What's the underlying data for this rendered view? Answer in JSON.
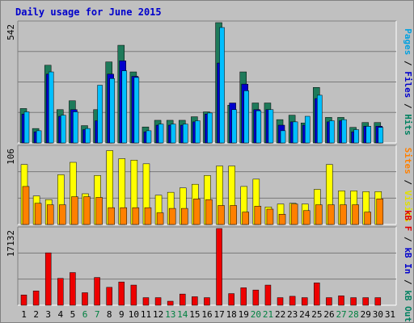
{
  "chart_data": {
    "type": "bar",
    "title": "Daily usage for June 2015",
    "categories": [
      "1",
      "2",
      "3",
      "4",
      "5",
      "6",
      "7",
      "8",
      "9",
      "10",
      "11",
      "12",
      "13",
      "14",
      "15",
      "16",
      "17",
      "18",
      "19",
      "20",
      "21",
      "22",
      "23",
      "24",
      "25",
      "26",
      "27",
      "28",
      "29",
      "30",
      "31"
    ],
    "weekend_days": [
      6,
      7,
      13,
      14,
      20,
      21,
      27,
      28
    ],
    "panels": [
      {
        "name": "hits_files_pages",
        "max_label": "542",
        "ylim": [
          0,
          542
        ],
        "side_labels": [
          {
            "text": "Pages",
            "color": "#00a0e0"
          },
          {
            "text": " / ",
            "color": "#000000"
          },
          {
            "text": "Files",
            "color": "#0000cc"
          },
          {
            "text": " / ",
            "color": "#000000"
          },
          {
            "text": "Hits",
            "color": "#008060"
          }
        ],
        "series": [
          {
            "name": "Hits",
            "color": "#1e7a5a",
            "values": [
              155,
              65,
              350,
              150,
              190,
              78,
              150,
              365,
              440,
              320,
              72,
              102,
              102,
              102,
              118,
              140,
              542,
              170,
              320,
              180,
              180,
              105,
              125,
              90,
              250,
              115,
              115,
              70,
              92,
              92,
              0
            ]
          },
          {
            "name": "Files",
            "color": "#0000cc",
            "values": [
              130,
              50,
              310,
              120,
              150,
              60,
              100,
              310,
              370,
              300,
              50,
              80,
              80,
              80,
              95,
              130,
              360,
              180,
              265,
              150,
              150,
              80,
              95,
              80,
              200,
              95,
              100,
              50,
              75,
              75,
              0
            ]
          },
          {
            "name": "Pages",
            "color": "#00bfff",
            "values": [
              140,
              55,
              320,
              125,
              140,
              65,
              260,
              290,
              325,
              295,
              55,
              85,
              85,
              85,
              100,
              135,
              520,
              150,
              235,
              145,
              150,
              55,
              95,
              120,
              215,
              100,
              105,
              60,
              75,
              70,
              0
            ]
          }
        ]
      },
      {
        "name": "visits_sites",
        "max_label": "106",
        "ylim": [
          0,
          106
        ],
        "side_labels": [
          {
            "text": "Sites",
            "color": "#ff8000"
          },
          {
            "text": " / ",
            "color": "#000000"
          },
          {
            "text": "Visits",
            "color": "#e0e000"
          }
        ],
        "series": [
          {
            "name": "Visits",
            "color": "#ffff00",
            "values": [
              82,
              39,
              34,
              68,
              85,
              42,
              67,
              101,
              90,
              88,
              83,
              40,
              44,
              50,
              55,
              67,
              80,
              80,
              52,
              62,
              24,
              28,
              29,
              28,
              48,
              82,
              46,
              46,
              45,
              45,
              0
            ]
          },
          {
            "name": "Sites",
            "color": "#ff8000",
            "values": [
              52,
              29,
              27,
              27,
              38,
              38,
              37,
              23,
              23,
              23,
              23,
              16,
              22,
              22,
              35,
              34,
              26,
              26,
              17,
              25,
              21,
              14,
              28,
              19,
              27,
              27,
              27,
              27,
              17,
              35,
              0
            ]
          }
        ]
      },
      {
        "name": "kbytes",
        "max_label": "17132",
        "ylim": [
          0,
          17132
        ],
        "side_labels": [
          {
            "text": "kB F",
            "color": "#e00000"
          },
          {
            "text": " / ",
            "color": "#000000"
          },
          {
            "text": "kB In",
            "color": "#0000cc"
          },
          {
            "text": " / ",
            "color": "#000000"
          },
          {
            "text": "kB Out",
            "color": "#008060"
          }
        ],
        "series": [
          {
            "name": "kB F",
            "color": "#ee0000",
            "values": [
              2300,
              3200,
              11700,
              6000,
              7300,
              2800,
              6200,
              4000,
              5200,
              4500,
              1700,
              1700,
              900,
              2500,
              1900,
              1700,
              17132,
              2600,
              3900,
              3400,
              4500,
              1700,
              2000,
              1700,
              5000,
              1700,
              2100,
              1700,
              1700,
              1700,
              0
            ]
          }
        ]
      }
    ]
  }
}
